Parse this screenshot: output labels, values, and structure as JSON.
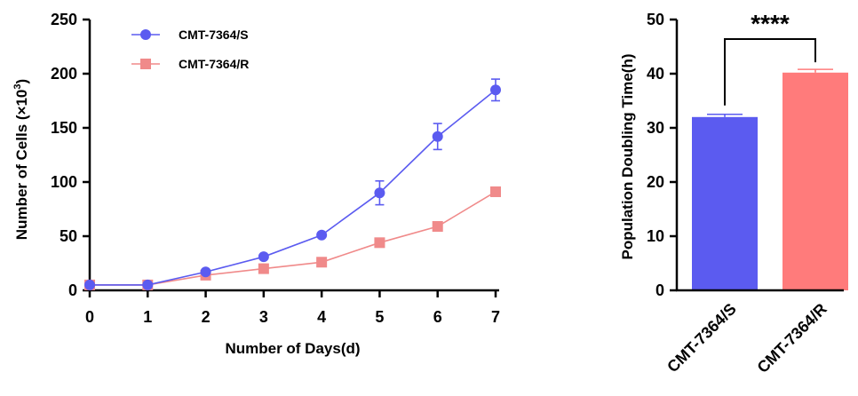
{
  "chart_data": [
    {
      "type": "line",
      "xlabel": "Number of Days(d)",
      "ylabel": "Number of Cells",
      "ylabel_suffix": "(×10",
      "ylabel_exp": "3",
      "ylabel_close": ")",
      "xlim": [
        0,
        7
      ],
      "ylim": [
        0,
        250
      ],
      "xticks": [
        "0",
        "1",
        "2",
        "3",
        "4",
        "5",
        "6",
        "7"
      ],
      "yticks": [
        "0",
        "50",
        "100",
        "150",
        "200",
        "250"
      ],
      "legend_position": "top-left",
      "x": [
        0,
        1,
        2,
        3,
        4,
        5,
        6,
        7
      ],
      "series": [
        {
          "name": "CMT-7364/S",
          "color": "#5b5bf0",
          "marker": "circle",
          "values": [
            5,
            5,
            17,
            31,
            51,
            90,
            142,
            185
          ],
          "errors": [
            0,
            0,
            0,
            0,
            0,
            11,
            12,
            10
          ]
        },
        {
          "name": "CMT-7364/R",
          "color": "#f08a8a",
          "marker": "square",
          "values": [
            5,
            5,
            14,
            20,
            26,
            44,
            59,
            91
          ],
          "errors": [
            0,
            0,
            0,
            0,
            0,
            0,
            0,
            0
          ]
        }
      ]
    },
    {
      "type": "bar",
      "ylabel": "Population Doubling Time(h)",
      "ylim": [
        0,
        50
      ],
      "yticks": [
        "0",
        "10",
        "20",
        "30",
        "40",
        "50"
      ],
      "categories": [
        "CMT-7364/S",
        "CMT-7364/R"
      ],
      "values": [
        32,
        40.2
      ],
      "errors": [
        0.5,
        0.6
      ],
      "colors": [
        "#5b5bf0",
        "#ff7b7b"
      ],
      "significance": "****"
    }
  ]
}
